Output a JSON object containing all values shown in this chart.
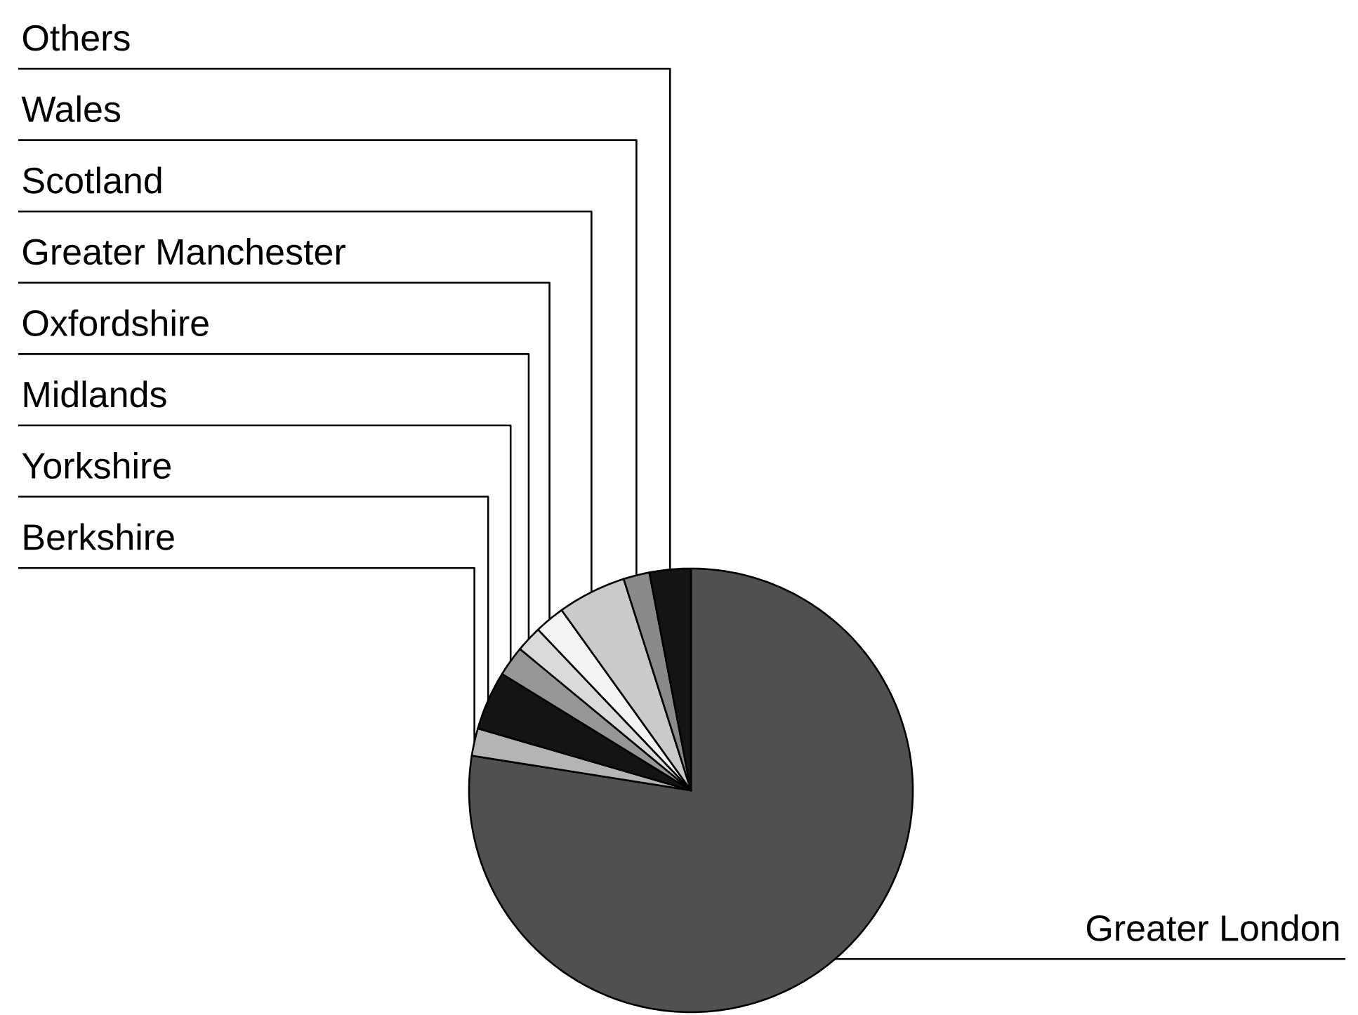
{
  "chart_data": {
    "type": "pie",
    "categories": [
      "Greater London",
      "Berkshire",
      "Yorkshire",
      "Midlands",
      "Oxfordshire",
      "Greater Manchester",
      "Scotland",
      "Wales",
      "Others"
    ],
    "values": [
      77.5,
      2.0,
      4.3,
      2.2,
      1.9,
      2.2,
      5.0,
      1.9,
      3.0
    ],
    "colors": [
      "#505050",
      "#b4b4b4",
      "#141414",
      "#969696",
      "#dadada",
      "#f4f4f4",
      "#cacaca",
      "#8a8a8a",
      "#141414"
    ]
  }
}
